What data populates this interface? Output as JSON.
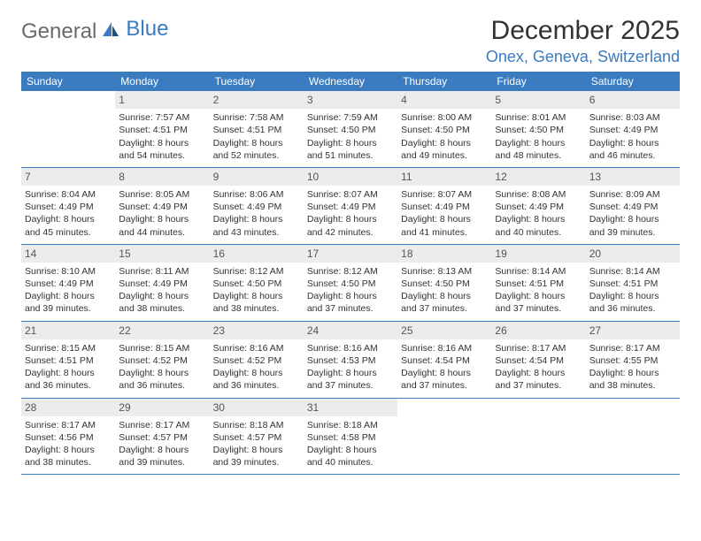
{
  "logo": {
    "text_gray": "General",
    "text_blue": "Blue"
  },
  "title": "December 2025",
  "location": "Onex, Geneva, Switzerland",
  "colors": {
    "header_bar": "#3b7bbf",
    "daynum_bg": "#ececec",
    "text": "#333333",
    "logo_gray": "#6a6a6a",
    "logo_blue": "#3b7bbf",
    "row_border": "#3b7bbf",
    "background": "#ffffff"
  },
  "typography": {
    "title_size_pt": 22,
    "location_size_pt": 14,
    "weekday_size_pt": 9,
    "body_size_pt": 8
  },
  "weekdays": [
    "Sunday",
    "Monday",
    "Tuesday",
    "Wednesday",
    "Thursday",
    "Friday",
    "Saturday"
  ],
  "weeks": [
    [
      null,
      {
        "n": "1",
        "sunrise": "Sunrise: 7:57 AM",
        "sunset": "Sunset: 4:51 PM",
        "daylight": "Daylight: 8 hours and 54 minutes."
      },
      {
        "n": "2",
        "sunrise": "Sunrise: 7:58 AM",
        "sunset": "Sunset: 4:51 PM",
        "daylight": "Daylight: 8 hours and 52 minutes."
      },
      {
        "n": "3",
        "sunrise": "Sunrise: 7:59 AM",
        "sunset": "Sunset: 4:50 PM",
        "daylight": "Daylight: 8 hours and 51 minutes."
      },
      {
        "n": "4",
        "sunrise": "Sunrise: 8:00 AM",
        "sunset": "Sunset: 4:50 PM",
        "daylight": "Daylight: 8 hours and 49 minutes."
      },
      {
        "n": "5",
        "sunrise": "Sunrise: 8:01 AM",
        "sunset": "Sunset: 4:50 PM",
        "daylight": "Daylight: 8 hours and 48 minutes."
      },
      {
        "n": "6",
        "sunrise": "Sunrise: 8:03 AM",
        "sunset": "Sunset: 4:49 PM",
        "daylight": "Daylight: 8 hours and 46 minutes."
      }
    ],
    [
      {
        "n": "7",
        "sunrise": "Sunrise: 8:04 AM",
        "sunset": "Sunset: 4:49 PM",
        "daylight": "Daylight: 8 hours and 45 minutes."
      },
      {
        "n": "8",
        "sunrise": "Sunrise: 8:05 AM",
        "sunset": "Sunset: 4:49 PM",
        "daylight": "Daylight: 8 hours and 44 minutes."
      },
      {
        "n": "9",
        "sunrise": "Sunrise: 8:06 AM",
        "sunset": "Sunset: 4:49 PM",
        "daylight": "Daylight: 8 hours and 43 minutes."
      },
      {
        "n": "10",
        "sunrise": "Sunrise: 8:07 AM",
        "sunset": "Sunset: 4:49 PM",
        "daylight": "Daylight: 8 hours and 42 minutes."
      },
      {
        "n": "11",
        "sunrise": "Sunrise: 8:07 AM",
        "sunset": "Sunset: 4:49 PM",
        "daylight": "Daylight: 8 hours and 41 minutes."
      },
      {
        "n": "12",
        "sunrise": "Sunrise: 8:08 AM",
        "sunset": "Sunset: 4:49 PM",
        "daylight": "Daylight: 8 hours and 40 minutes."
      },
      {
        "n": "13",
        "sunrise": "Sunrise: 8:09 AM",
        "sunset": "Sunset: 4:49 PM",
        "daylight": "Daylight: 8 hours and 39 minutes."
      }
    ],
    [
      {
        "n": "14",
        "sunrise": "Sunrise: 8:10 AM",
        "sunset": "Sunset: 4:49 PM",
        "daylight": "Daylight: 8 hours and 39 minutes."
      },
      {
        "n": "15",
        "sunrise": "Sunrise: 8:11 AM",
        "sunset": "Sunset: 4:49 PM",
        "daylight": "Daylight: 8 hours and 38 minutes."
      },
      {
        "n": "16",
        "sunrise": "Sunrise: 8:12 AM",
        "sunset": "Sunset: 4:50 PM",
        "daylight": "Daylight: 8 hours and 38 minutes."
      },
      {
        "n": "17",
        "sunrise": "Sunrise: 8:12 AM",
        "sunset": "Sunset: 4:50 PM",
        "daylight": "Daylight: 8 hours and 37 minutes."
      },
      {
        "n": "18",
        "sunrise": "Sunrise: 8:13 AM",
        "sunset": "Sunset: 4:50 PM",
        "daylight": "Daylight: 8 hours and 37 minutes."
      },
      {
        "n": "19",
        "sunrise": "Sunrise: 8:14 AM",
        "sunset": "Sunset: 4:51 PM",
        "daylight": "Daylight: 8 hours and 37 minutes."
      },
      {
        "n": "20",
        "sunrise": "Sunrise: 8:14 AM",
        "sunset": "Sunset: 4:51 PM",
        "daylight": "Daylight: 8 hours and 36 minutes."
      }
    ],
    [
      {
        "n": "21",
        "sunrise": "Sunrise: 8:15 AM",
        "sunset": "Sunset: 4:51 PM",
        "daylight": "Daylight: 8 hours and 36 minutes."
      },
      {
        "n": "22",
        "sunrise": "Sunrise: 8:15 AM",
        "sunset": "Sunset: 4:52 PM",
        "daylight": "Daylight: 8 hours and 36 minutes."
      },
      {
        "n": "23",
        "sunrise": "Sunrise: 8:16 AM",
        "sunset": "Sunset: 4:52 PM",
        "daylight": "Daylight: 8 hours and 36 minutes."
      },
      {
        "n": "24",
        "sunrise": "Sunrise: 8:16 AM",
        "sunset": "Sunset: 4:53 PM",
        "daylight": "Daylight: 8 hours and 37 minutes."
      },
      {
        "n": "25",
        "sunrise": "Sunrise: 8:16 AM",
        "sunset": "Sunset: 4:54 PM",
        "daylight": "Daylight: 8 hours and 37 minutes."
      },
      {
        "n": "26",
        "sunrise": "Sunrise: 8:17 AM",
        "sunset": "Sunset: 4:54 PM",
        "daylight": "Daylight: 8 hours and 37 minutes."
      },
      {
        "n": "27",
        "sunrise": "Sunrise: 8:17 AM",
        "sunset": "Sunset: 4:55 PM",
        "daylight": "Daylight: 8 hours and 38 minutes."
      }
    ],
    [
      {
        "n": "28",
        "sunrise": "Sunrise: 8:17 AM",
        "sunset": "Sunset: 4:56 PM",
        "daylight": "Daylight: 8 hours and 38 minutes."
      },
      {
        "n": "29",
        "sunrise": "Sunrise: 8:17 AM",
        "sunset": "Sunset: 4:57 PM",
        "daylight": "Daylight: 8 hours and 39 minutes."
      },
      {
        "n": "30",
        "sunrise": "Sunrise: 8:18 AM",
        "sunset": "Sunset: 4:57 PM",
        "daylight": "Daylight: 8 hours and 39 minutes."
      },
      {
        "n": "31",
        "sunrise": "Sunrise: 8:18 AM",
        "sunset": "Sunset: 4:58 PM",
        "daylight": "Daylight: 8 hours and 40 minutes."
      },
      null,
      null,
      null
    ]
  ]
}
